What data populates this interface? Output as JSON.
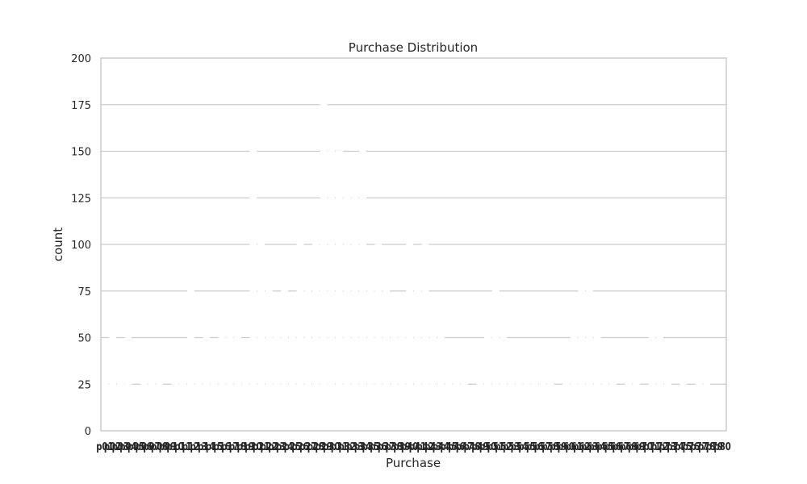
{
  "chart_data": {
    "type": "bar",
    "title": "Purchase Distribution",
    "xlabel": "Purchase",
    "ylabel": "count",
    "ylim": [
      0,
      200
    ],
    "yticks": [
      0,
      25,
      50,
      75,
      100,
      125,
      150,
      175,
      200
    ],
    "grid": true,
    "legend": "none",
    "colors": {
      "bar": "#ffffff",
      "grid": "#cccccc",
      "text": "#262626"
    },
    "categories": [
      "p01",
      "p02",
      "p03",
      "p04",
      "p05",
      "p06",
      "p07",
      "p08",
      "p09",
      "p10",
      "p11",
      "p12",
      "p13",
      "p14",
      "p15",
      "p16",
      "p17",
      "p18",
      "p19",
      "p20",
      "p21",
      "p22",
      "p23",
      "p24",
      "p25",
      "p26",
      "p27",
      "p28",
      "p29",
      "p30",
      "p31",
      "p32",
      "p33",
      "p34",
      "p35",
      "p36",
      "p37",
      "p38",
      "p39",
      "p40",
      "p41",
      "p42",
      "p43",
      "p44",
      "p45",
      "p46",
      "p47",
      "p48",
      "p49",
      "p50",
      "p51",
      "p52",
      "p53",
      "p54",
      "p55",
      "p56",
      "p57",
      "p58",
      "p59",
      "p60",
      "p61",
      "p62",
      "p63",
      "p64",
      "p65",
      "p66",
      "p67",
      "p68",
      "p69",
      "p70",
      "p71",
      "p72",
      "p73",
      "p74",
      "p75",
      "p76",
      "p77",
      "p78",
      "p79",
      "p80"
    ],
    "values": [
      30,
      55,
      28,
      52,
      24,
      31,
      26,
      48,
      22,
      27,
      35,
      78,
      45,
      52,
      28,
      70,
      62,
      58,
      40,
      160,
      110,
      82,
      74,
      98,
      68,
      104,
      88,
      120,
      178,
      152,
      150,
      132,
      128,
      158,
      96,
      100,
      90,
      58,
      66,
      105,
      84,
      100,
      70,
      58,
      34,
      42,
      26,
      22,
      30,
      62,
      80,
      58,
      30,
      48,
      26,
      32,
      28,
      35,
      22,
      26,
      58,
      80,
      78,
      52,
      30,
      28,
      24,
      30,
      26,
      22,
      58,
      52,
      26,
      24,
      30,
      22,
      28,
      26,
      24,
      20
    ]
  }
}
